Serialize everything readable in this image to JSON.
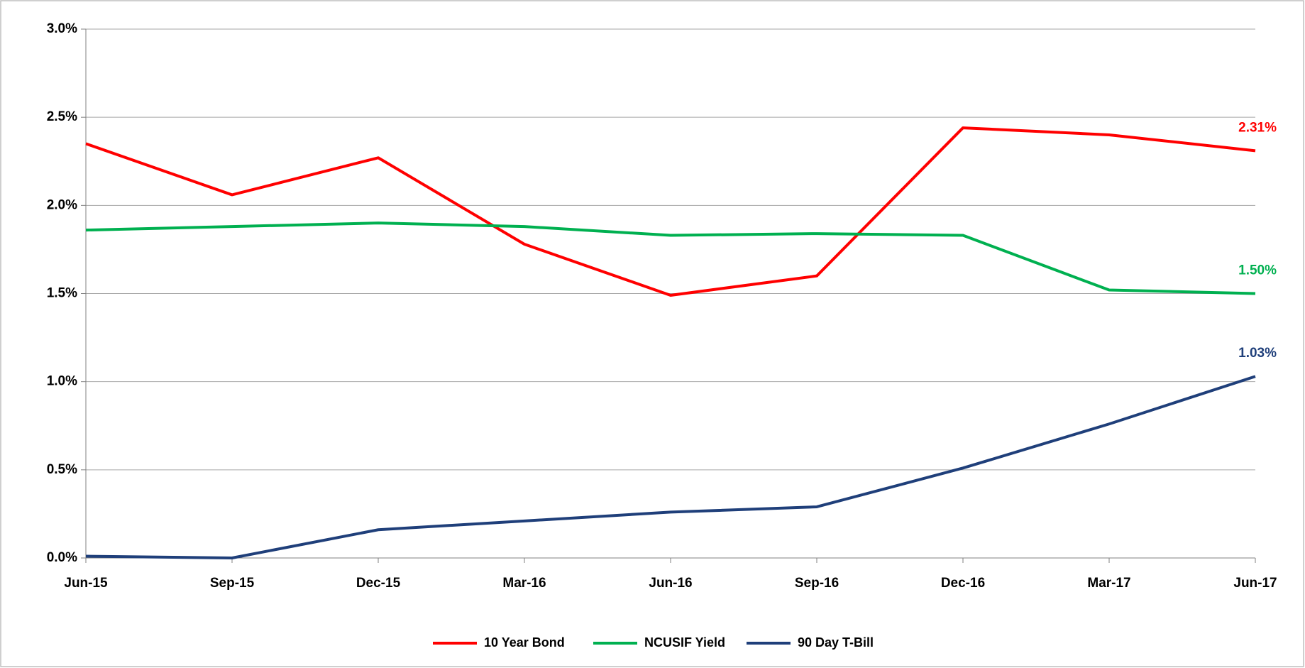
{
  "chart_data": {
    "type": "line",
    "categories": [
      "Jun-15",
      "Sep-15",
      "Dec-15",
      "Mar-16",
      "Jun-16",
      "Sep-16",
      "Dec-16",
      "Mar-17",
      "Jun-17"
    ],
    "series": [
      {
        "name": "10 Year Bond",
        "color": "#ff0000",
        "values": [
          2.35,
          2.06,
          2.27,
          1.78,
          1.49,
          1.6,
          2.44,
          2.4,
          2.31
        ],
        "value_labels": [
          null,
          null,
          null,
          null,
          null,
          null,
          null,
          null,
          "2.31%"
        ]
      },
      {
        "name": "NCUSIF Yield",
        "color": "#00b050",
        "values": [
          1.86,
          1.88,
          1.9,
          1.88,
          1.83,
          1.84,
          1.83,
          1.52,
          1.5
        ],
        "value_labels": [
          null,
          null,
          null,
          null,
          null,
          null,
          null,
          null,
          "1.50%"
        ]
      },
      {
        "name": "90 Day T-Bill",
        "color": "#1f3f7a",
        "values": [
          0.01,
          0.0,
          0.16,
          0.21,
          0.26,
          0.29,
          0.51,
          0.76,
          1.03
        ],
        "value_labels": [
          null,
          null,
          null,
          null,
          null,
          null,
          null,
          null,
          "1.03%"
        ]
      }
    ],
    "ylim": [
      0,
      3
    ],
    "yticks": [
      {
        "value": 0,
        "label": "0.0%"
      },
      {
        "value": 0.5,
        "label": "0.5%"
      },
      {
        "value": 1,
        "label": "1.0%"
      },
      {
        "value": 1.5,
        "label": "1.5%"
      },
      {
        "value": 2,
        "label": "2.0%"
      },
      {
        "value": 2.5,
        "label": "2.5%"
      },
      {
        "value": 3,
        "label": "3.0%"
      }
    ],
    "grid": true,
    "legend": "bottom"
  }
}
